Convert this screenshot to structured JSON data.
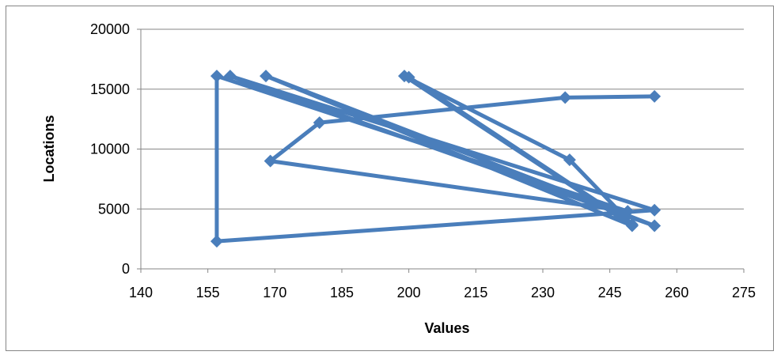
{
  "chart_data": {
    "type": "scatter",
    "xlabel": "Values",
    "ylabel": "Locations",
    "xlim": [
      140,
      275
    ],
    "ylim": [
      0,
      20000
    ],
    "x_ticks": [
      "140",
      "155",
      "170",
      "185",
      "200",
      "215",
      "230",
      "245",
      "260",
      "275"
    ],
    "y_ticks": [
      "0",
      "5000",
      "10000",
      "15000",
      "20000"
    ],
    "grid": "horizontal",
    "legend": "none",
    "line_color": "#4a7ebb",
    "series": [
      {
        "points": [
          {
            "x": 255,
            "y": 14400
          },
          {
            "x": 235,
            "y": 14300
          },
          {
            "x": 180,
            "y": 12200
          },
          {
            "x": 169,
            "y": 9000
          },
          {
            "x": 249,
            "y": 4800
          },
          {
            "x": 157,
            "y": 16100
          },
          {
            "x": 157,
            "y": 2300
          },
          {
            "x": 255,
            "y": 4900
          },
          {
            "x": 160,
            "y": 16100
          },
          {
            "x": 255,
            "y": 3600
          },
          {
            "x": 168,
            "y": 16100
          },
          {
            "x": 250,
            "y": 3600
          },
          {
            "x": 199,
            "y": 16100
          },
          {
            "x": 236,
            "y": 9100
          },
          {
            "x": 250,
            "y": 3700
          },
          {
            "x": 200,
            "y": 16000
          }
        ]
      }
    ]
  }
}
